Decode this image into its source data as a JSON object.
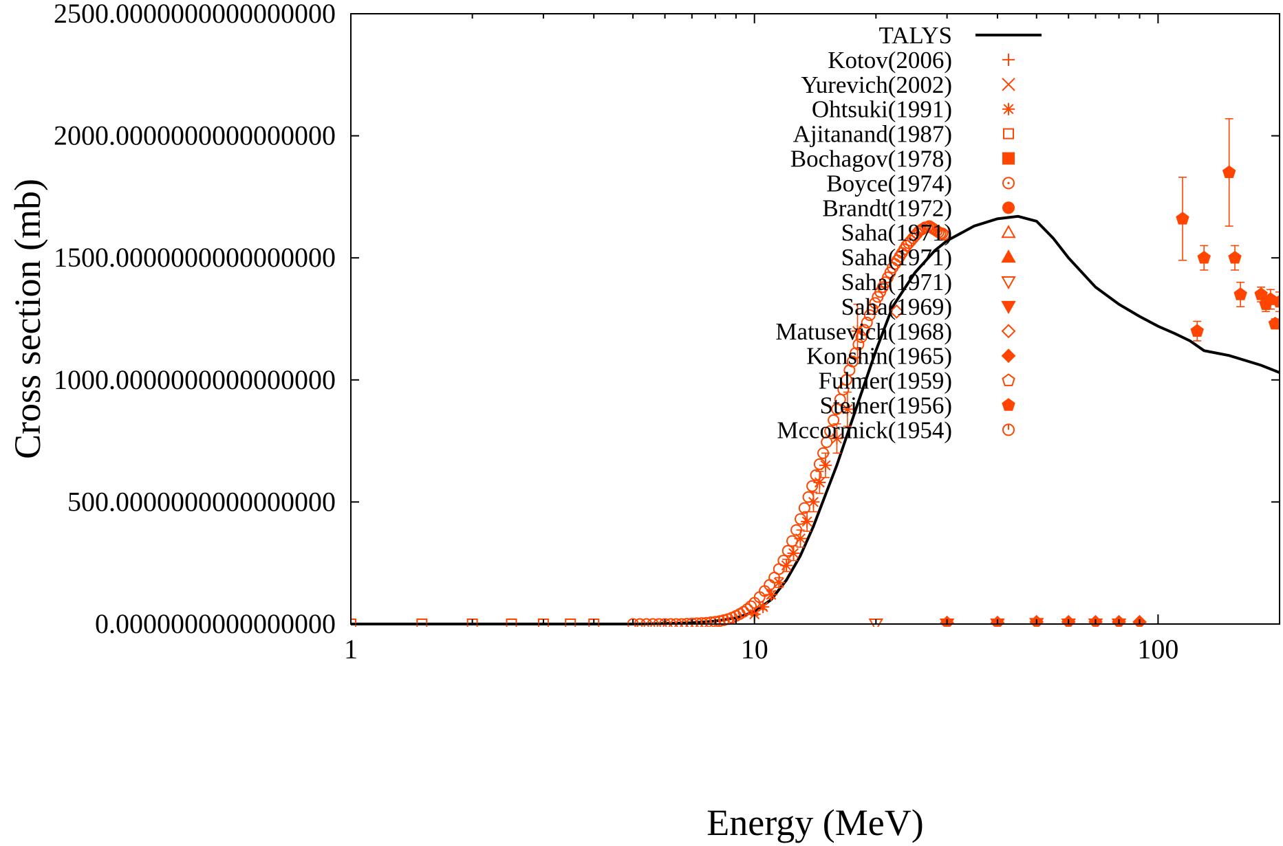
{
  "chart_data": {
    "type": "scatter",
    "xlabel": "Energy (MeV)",
    "ylabel": "Cross section (mb)",
    "xscale": "log",
    "xlim": [
      1,
      200
    ],
    "ylim": [
      0,
      2500
    ],
    "x_ticks": [
      {
        "value": 1,
        "label": "1"
      },
      {
        "value": 10,
        "label": "10"
      },
      {
        "value": 100,
        "label": "100"
      }
    ],
    "y_ticks": [
      {
        "value": 0,
        "label": "0.0000000000000000"
      },
      {
        "value": 500,
        "label": "500.0000000000000000"
      },
      {
        "value": 1000,
        "label": "1000.0000000000000000"
      },
      {
        "value": 1500,
        "label": "1500.0000000000000000"
      },
      {
        "value": 2000,
        "label": "2000.0000000000000000"
      },
      {
        "value": 2500,
        "label": "2500.0000000000000000"
      }
    ],
    "grid": false,
    "legend_position": "top-right",
    "colors": {
      "talys": "#000000",
      "experiment": "#ff4500"
    },
    "series": [
      {
        "name": "TALYS",
        "kind": "line",
        "x": [
          1,
          2,
          3,
          4,
          5,
          6,
          7,
          8,
          9,
          10,
          11,
          12,
          13,
          14,
          15,
          16,
          18,
          20,
          22,
          25,
          28,
          30,
          35,
          40,
          45,
          50,
          55,
          60,
          70,
          80,
          90,
          100,
          110,
          120,
          130,
          150,
          180,
          200
        ],
        "y": [
          0,
          0,
          0,
          0,
          0,
          2,
          5,
          12,
          25,
          50,
          100,
          180,
          280,
          400,
          530,
          650,
          900,
          1120,
          1300,
          1440,
          1530,
          1570,
          1630,
          1660,
          1670,
          1650,
          1580,
          1500,
          1380,
          1310,
          1260,
          1220,
          1190,
          1160,
          1120,
          1100,
          1060,
          1030
        ]
      },
      {
        "name": "Kotov(2006)",
        "marker": "plus",
        "x": [],
        "y": []
      },
      {
        "name": "Yurevich(2002)",
        "marker": "cross",
        "x": [],
        "y": []
      },
      {
        "name": "Ohtsuki(1991)",
        "marker": "star",
        "x": [
          10,
          10.5,
          11,
          11.5,
          12,
          12.5,
          13,
          13.5,
          14,
          14.5,
          15,
          16,
          17,
          18
        ],
        "y": [
          40,
          70,
          120,
          170,
          240,
          290,
          350,
          420,
          500,
          580,
          650,
          760,
          880,
          1200
        ],
        "yerr": [
          5,
          10,
          15,
          20,
          25,
          30,
          35,
          40,
          40,
          45,
          50,
          60,
          70,
          110
        ]
      },
      {
        "name": "Ajitanand(1987)",
        "marker": "square-open",
        "x": [
          1,
          1.5,
          2,
          2.5,
          3,
          3.5,
          4
        ],
        "y": [
          0,
          0,
          0,
          0,
          0,
          0,
          0
        ]
      },
      {
        "name": "Bochagov(1978)",
        "marker": "square-filled",
        "x": [],
        "y": []
      },
      {
        "name": "Boyce(1974)",
        "marker": "circle-dot",
        "x": [],
        "y": []
      },
      {
        "name": "Brandt(1972)",
        "marker": "circle-filled",
        "x": [],
        "y": []
      },
      {
        "name": "Saha(1971)",
        "marker": "triangle-open",
        "x": [],
        "y": []
      },
      {
        "name": "Saha(1971)",
        "marker": "triangle-filled",
        "x": [],
        "y": []
      },
      {
        "name": "Saha(1971)",
        "marker": "triangle-down-open",
        "x": [
          20
        ],
        "y": [
          0
        ]
      },
      {
        "name": "Saha(1969)",
        "marker": "triangle-down-filled",
        "x": [
          30,
          40,
          50,
          60,
          70,
          80
        ],
        "y": [
          0,
          0,
          2,
          0,
          0,
          0
        ]
      },
      {
        "name": "Matusevich(1968)",
        "marker": "diamond-open",
        "x": [
          22.5
        ],
        "y": [
          1280
        ]
      },
      {
        "name": "Konshin(1965)",
        "marker": "diamond-filled",
        "x": [
          30,
          40,
          50,
          60,
          70,
          80,
          90
        ],
        "y": [
          5,
          5,
          8,
          8,
          8,
          8,
          8
        ]
      },
      {
        "name": "Fulmer(1959)",
        "marker": "pentagon-open",
        "x": [],
        "y": []
      },
      {
        "name": "Steiner(1956)",
        "marker": "pentagon-filled",
        "x": [
          115,
          125,
          130,
          150,
          155,
          160,
          180,
          185,
          190,
          195,
          200
        ],
        "y": [
          1660,
          1200,
          1500,
          1850,
          1500,
          1350,
          1350,
          1310,
          1330,
          1230,
          1320
        ],
        "yerr": [
          170,
          40,
          50,
          220,
          50,
          50,
          30,
          30,
          40,
          20,
          40
        ]
      },
      {
        "name": "Mccormick(1954)",
        "marker": "circle-open",
        "x": [
          5,
          5.2,
          5.4,
          5.6,
          5.8,
          6,
          6.2,
          6.4,
          6.6,
          6.8,
          7,
          7.2,
          7.4,
          7.6,
          7.8,
          8,
          8.2,
          8.4,
          8.6,
          8.8,
          9,
          9.2,
          9.4,
          9.6,
          9.8,
          10,
          10.3,
          10.6,
          10.9,
          11.2,
          11.5,
          11.8,
          12.1,
          12.4,
          12.7,
          13,
          13.3,
          13.6,
          13.9,
          14.2,
          14.5,
          14.8,
          15.1,
          15.4,
          15.7,
          16,
          16.3,
          16.6,
          16.9,
          17.2,
          17.5,
          17.8,
          18.1,
          18.4,
          18.7,
          19,
          19.3,
          19.6,
          19.9,
          20.2,
          20.5,
          20.8,
          21.1,
          21.4,
          21.7,
          22,
          22.3,
          22.6,
          22.9,
          23.2,
          23.5,
          23.8,
          24.1,
          24.4,
          24.7,
          25,
          25.3,
          25.6,
          25.9,
          26.2,
          26.5,
          26.8,
          27.1,
          27.4,
          27.7,
          28,
          28.3,
          28.6,
          28.9,
          29.2,
          29.5
        ],
        "y": [
          0,
          0,
          0,
          0,
          0,
          0,
          0,
          0,
          0,
          1,
          2,
          3,
          4,
          5,
          7,
          9,
          12,
          16,
          20,
          26,
          33,
          41,
          50,
          61,
          73,
          87,
          110,
          135,
          160,
          190,
          225,
          260,
          300,
          340,
          385,
          430,
          475,
          520,
          565,
          610,
          655,
          700,
          745,
          790,
          835,
          880,
          920,
          960,
          1000,
          1040,
          1075,
          1110,
          1145,
          1175,
          1205,
          1235,
          1265,
          1290,
          1315,
          1340,
          1360,
          1380,
          1400,
          1420,
          1440,
          1460,
          1475,
          1490,
          1505,
          1520,
          1535,
          1550,
          1560,
          1570,
          1580,
          1590,
          1600,
          1610,
          1615,
          1620,
          1625,
          1625,
          1630,
          1625,
          1620,
          1615,
          1610,
          1605,
          1600,
          1600,
          1595
        ]
      }
    ]
  }
}
